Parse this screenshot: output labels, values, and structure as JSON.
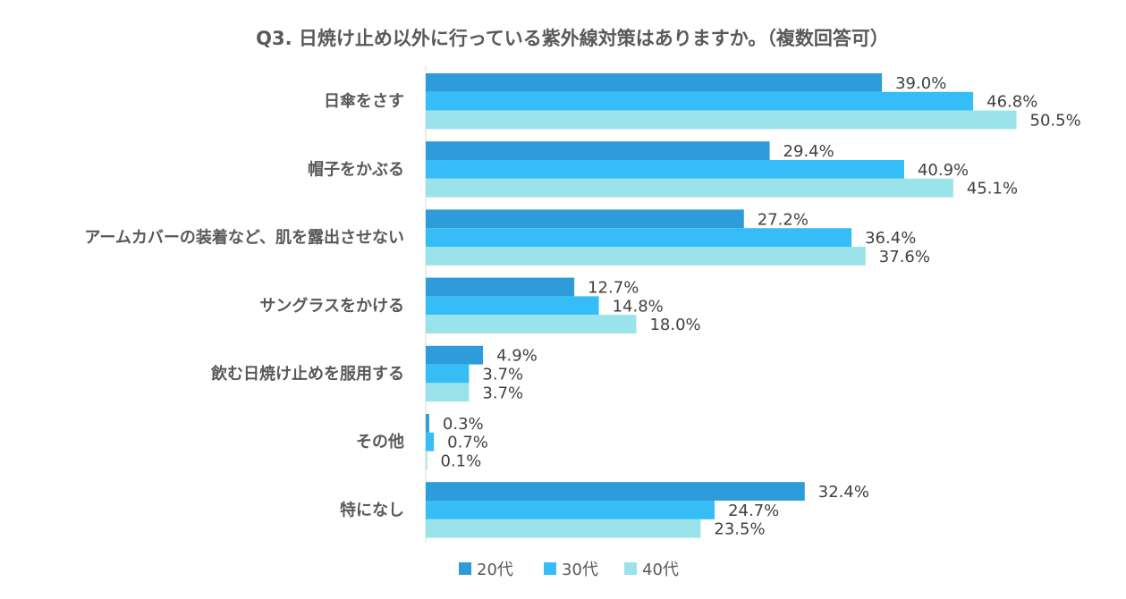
{
  "chart_data": {
    "type": "bar",
    "orientation": "horizontal",
    "title": "Q3. 日焼け止め以外に行っている紫外線対策はありますか。（複数回答可）",
    "categories": [
      "日傘をさす",
      "帽子をかぶる",
      "アームカバーの装着など、肌を露出させない",
      "サングラスをかける",
      "飲む日焼け止めを服用する",
      "その他",
      "特になし"
    ],
    "series": [
      {
        "name": "20代",
        "color": "#2E9BDB",
        "values": [
          39.0,
          29.4,
          27.2,
          12.7,
          4.9,
          0.3,
          32.4
        ],
        "labels": [
          "39.0%",
          "29.4%",
          "27.2%",
          "12.7%",
          "4.9%",
          "0.3%",
          "32.4%"
        ]
      },
      {
        "name": "30代",
        "color": "#36BCF7",
        "values": [
          46.8,
          40.9,
          36.4,
          14.8,
          3.7,
          0.7,
          24.7
        ],
        "labels": [
          "46.8%",
          "40.9%",
          "36.4%",
          "14.8%",
          "3.7%",
          "0.7%",
          "24.7%"
        ]
      },
      {
        "name": "40代",
        "color": "#9AE3EA",
        "values": [
          50.5,
          45.1,
          37.6,
          18.0,
          3.7,
          0.1,
          23.5
        ],
        "labels": [
          "50.5%",
          "45.1%",
          "37.6%",
          "18.0%",
          "3.7%",
          "0.1%",
          "23.5%"
        ]
      }
    ],
    "xlim": [
      0,
      60
    ],
    "grid": false,
    "legend_position": "bottom"
  }
}
